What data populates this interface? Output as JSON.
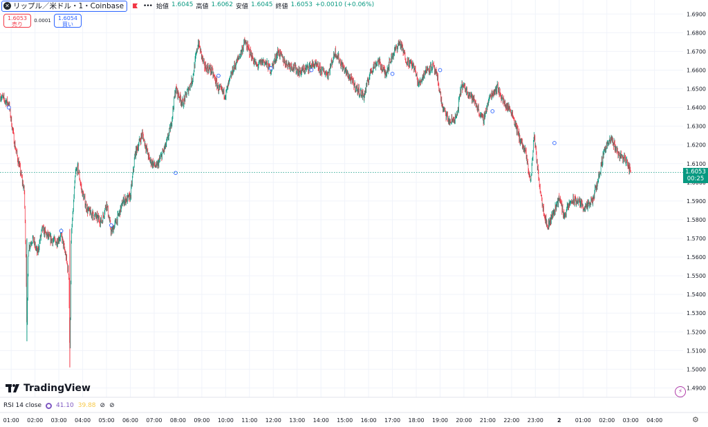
{
  "header": {
    "symbol_icon": "x-icon",
    "title": "リップル／米ドル・1・Coinbase",
    "more": "•••",
    "ohlc": [
      {
        "label": "始値",
        "value": "1.6045"
      },
      {
        "label": "高値",
        "value": "1.6062"
      },
      {
        "label": "安値",
        "value": "1.6045"
      },
      {
        "label": "終値",
        "value": "1.6053"
      },
      {
        "label": "",
        "value": "+0.0010 (+0.06%)"
      }
    ]
  },
  "trade": {
    "sell_price": "1.6053",
    "sell_label": "売り",
    "spread": "0.0001",
    "buy_price": "1.6054",
    "buy_label": "買い"
  },
  "price_tag": {
    "price": "1.6053",
    "countdown": "00:25"
  },
  "logo": {
    "text": "TradingView"
  },
  "rsi": {
    "label": "RSI 14 close",
    "value1": "41.10",
    "value2": "39.88",
    "icons": [
      "⊘",
      "⊘"
    ]
  },
  "colors": {
    "up": "#089981",
    "down": "#f23645",
    "grid": "#f0f3fa",
    "axis_text": "#131722"
  },
  "chart_data": {
    "type": "candlestick",
    "title": "",
    "ylim": [
      1.485,
      1.6975
    ],
    "y_ticks": [
      "1.6900",
      "1.6800",
      "1.6700",
      "1.6600",
      "1.6500",
      "1.6400",
      "1.6300",
      "1.6200",
      "1.6100",
      "1.6000",
      "1.5900",
      "1.5800",
      "1.5700",
      "1.5600",
      "1.5500",
      "1.5400",
      "1.5300",
      "1.5200",
      "1.5100",
      "1.5000",
      "1.4900"
    ],
    "x_ticks": [
      "01:00",
      "02:00",
      "03:00",
      "04:00",
      "05:00",
      "06:00",
      "07:00",
      "08:00",
      "09:00",
      "10:00",
      "11:00",
      "12:00",
      "13:00",
      "14:00",
      "15:00",
      "16:00",
      "17:00",
      "18:00",
      "19:00",
      "20:00",
      "21:00",
      "22:00",
      "23:00",
      "2",
      "01:00",
      "02:00",
      "03:00",
      "04:00"
    ],
    "x_tick_hours": [
      1,
      2,
      3,
      4,
      5,
      6,
      7,
      8,
      9,
      10,
      11,
      12,
      13,
      14,
      15,
      16,
      17,
      18,
      19,
      20,
      21,
      22,
      23,
      24,
      25,
      26,
      27,
      28
    ],
    "x_range_hours": [
      0.53,
      29.2
    ],
    "last_price": 1.6053,
    "price_path": [
      [
        0.55,
        1.646
      ],
      [
        0.9,
        1.642
      ],
      [
        1.15,
        1.62
      ],
      [
        1.35,
        1.608
      ],
      [
        1.55,
        1.595
      ],
      [
        1.62,
        1.56
      ],
      [
        1.66,
        1.518
      ],
      [
        1.72,
        1.565
      ],
      [
        1.9,
        1.57
      ],
      [
        2.1,
        1.562
      ],
      [
        2.3,
        1.575
      ],
      [
        2.6,
        1.57
      ],
      [
        2.9,
        1.568
      ],
      [
        3.1,
        1.572
      ],
      [
        3.3,
        1.56
      ],
      [
        3.42,
        1.55
      ],
      [
        3.46,
        1.503
      ],
      [
        3.52,
        1.57
      ],
      [
        3.7,
        1.605
      ],
      [
        3.8,
        1.608
      ],
      [
        3.95,
        1.596
      ],
      [
        4.2,
        1.585
      ],
      [
        4.5,
        1.582
      ],
      [
        4.8,
        1.579
      ],
      [
        5.0,
        1.589
      ],
      [
        5.2,
        1.573
      ],
      [
        5.5,
        1.582
      ],
      [
        5.7,
        1.59
      ],
      [
        6.0,
        1.592
      ],
      [
        6.2,
        1.615
      ],
      [
        6.5,
        1.626
      ],
      [
        6.8,
        1.612
      ],
      [
        7.1,
        1.608
      ],
      [
        7.5,
        1.62
      ],
      [
        7.7,
        1.63
      ],
      [
        7.9,
        1.65
      ],
      [
        8.2,
        1.642
      ],
      [
        8.6,
        1.655
      ],
      [
        8.85,
        1.675
      ],
      [
        9.1,
        1.662
      ],
      [
        9.4,
        1.66
      ],
      [
        9.7,
        1.65
      ],
      [
        10.0,
        1.647
      ],
      [
        10.3,
        1.66
      ],
      [
        10.6,
        1.668
      ],
      [
        10.8,
        1.675
      ],
      [
        11.0,
        1.67
      ],
      [
        11.3,
        1.662
      ],
      [
        11.6,
        1.665
      ],
      [
        11.9,
        1.66
      ],
      [
        12.2,
        1.67
      ],
      [
        12.5,
        1.664
      ],
      [
        12.8,
        1.662
      ],
      [
        13.1,
        1.659
      ],
      [
        13.4,
        1.661
      ],
      [
        13.7,
        1.663
      ],
      [
        14.0,
        1.66
      ],
      [
        14.3,
        1.658
      ],
      [
        14.6,
        1.67
      ],
      [
        14.9,
        1.662
      ],
      [
        15.2,
        1.656
      ],
      [
        15.5,
        1.65
      ],
      [
        15.8,
        1.646
      ],
      [
        16.1,
        1.66
      ],
      [
        16.4,
        1.665
      ],
      [
        16.7,
        1.658
      ],
      [
        17.0,
        1.668
      ],
      [
        17.3,
        1.675
      ],
      [
        17.6,
        1.665
      ],
      [
        17.9,
        1.662
      ],
      [
        18.1,
        1.652
      ],
      [
        18.4,
        1.66
      ],
      [
        18.7,
        1.662
      ],
      [
        18.9,
        1.655
      ],
      [
        19.1,
        1.64
      ],
      [
        19.4,
        1.632
      ],
      [
        19.7,
        1.635
      ],
      [
        19.9,
        1.652
      ],
      [
        20.2,
        1.648
      ],
      [
        20.5,
        1.642
      ],
      [
        20.8,
        1.633
      ],
      [
        21.1,
        1.646
      ],
      [
        21.4,
        1.651
      ],
      [
        21.7,
        1.642
      ],
      [
        22.0,
        1.638
      ],
      [
        22.3,
        1.625
      ],
      [
        22.6,
        1.615
      ],
      [
        22.8,
        1.6
      ],
      [
        22.95,
        1.626
      ],
      [
        23.1,
        1.606
      ],
      [
        23.3,
        1.588
      ],
      [
        23.5,
        1.576
      ],
      [
        23.8,
        1.585
      ],
      [
        24.0,
        1.592
      ],
      [
        24.2,
        1.582
      ],
      [
        24.5,
        1.59
      ],
      [
        24.8,
        1.59
      ],
      [
        25.1,
        1.586
      ],
      [
        25.4,
        1.59
      ],
      [
        25.7,
        1.605
      ],
      [
        25.9,
        1.618
      ],
      [
        26.2,
        1.623
      ],
      [
        26.5,
        1.615
      ],
      [
        26.8,
        1.612
      ],
      [
        27.0,
        1.6053
      ]
    ],
    "markers": [
      [
        0.9,
        1.64
      ],
      [
        3.1,
        1.574
      ],
      [
        5.2,
        1.577
      ],
      [
        7.9,
        1.605
      ],
      [
        9.7,
        1.657
      ],
      [
        11.9,
        1.661
      ],
      [
        13.6,
        1.66
      ],
      [
        17.0,
        1.658
      ],
      [
        19.0,
        1.66
      ],
      [
        21.2,
        1.638
      ],
      [
        23.8,
        1.621
      ]
    ]
  }
}
